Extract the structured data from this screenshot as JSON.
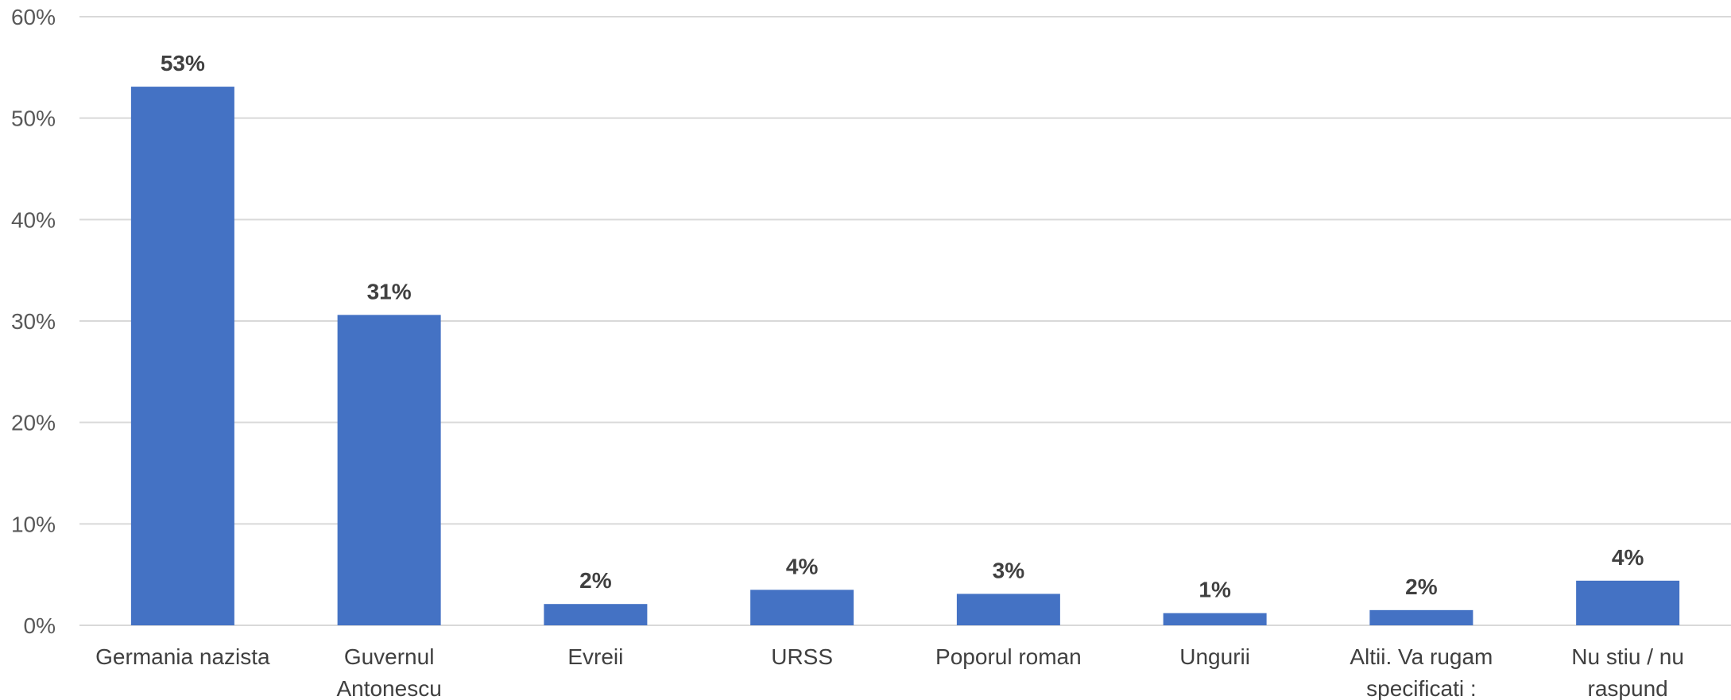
{
  "chart_data": {
    "type": "bar",
    "categories": [
      "Germania nazista",
      "Guvernul Antonescu",
      "Evreii",
      "URSS",
      "Poporul roman",
      "Ungurii",
      "Altii. Va rugam specificati :",
      "Nu stiu / nu raspund"
    ],
    "category_lines": [
      [
        "Germania nazista"
      ],
      [
        "Guvernul",
        "Antonescu"
      ],
      [
        "Evreii"
      ],
      [
        "URSS"
      ],
      [
        "Poporul roman"
      ],
      [
        "Ungurii"
      ],
      [
        "Altii. Va rugam",
        "specificati :"
      ],
      [
        "Nu stiu / nu",
        "raspund"
      ]
    ],
    "values": [
      53.1,
      30.6,
      2.1,
      3.5,
      3.1,
      1.2,
      1.5,
      4.4
    ],
    "data_labels": [
      "53%",
      "31%",
      "2%",
      "4%",
      "3%",
      "1%",
      "2%",
      "4%"
    ],
    "ylim": [
      0,
      60
    ],
    "yticks": [
      0,
      10,
      20,
      30,
      40,
      50,
      60
    ],
    "ytick_labels": [
      "0%",
      "10%",
      "20%",
      "30%",
      "40%",
      "50%",
      "60%"
    ],
    "grid": true,
    "bar_color": "#4472c4",
    "grid_color": "#d9d9d9"
  }
}
